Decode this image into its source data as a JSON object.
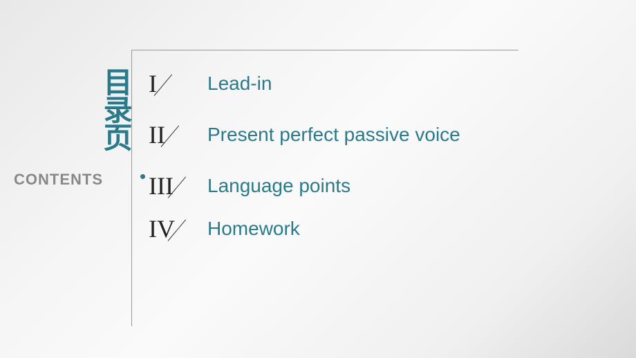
{
  "leftLabel": {
    "chinese": "目录页",
    "english": "CONTENTS"
  },
  "toc": {
    "items": [
      {
        "numeral": "I",
        "label": "Lead-in"
      },
      {
        "numeral": "II",
        "label": "Present perfect passive voice"
      },
      {
        "numeral": "III",
        "label": "Language points"
      },
      {
        "numeral": "IV",
        "label": "Homework"
      }
    ]
  },
  "styling": {
    "accent_color": "#2b7a8c",
    "numeral_color": "#222222",
    "contents_color": "#888888",
    "line_color": "#999999",
    "background_gradient": [
      "#e8e8e8",
      "#f5f5f5",
      "#fafafa",
      "#f0f0f0",
      "#dadada"
    ],
    "chinese_fontsize": 42,
    "toc_label_fontsize": 28,
    "numeral_fontsize": 36,
    "contents_fontsize": 22
  }
}
